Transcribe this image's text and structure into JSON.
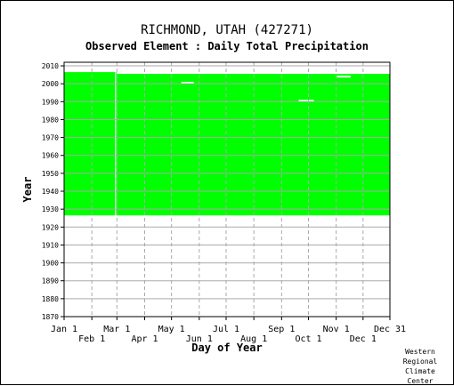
{
  "header": {
    "station": "RICHMOND, UTAH   (427271)",
    "element": "Observed Element : Daily Total Precipitation"
  },
  "credit": "Western\nRegional\nClimate\nCenter",
  "colors": {
    "data_fill": "#00ff00",
    "grid": "#aaaaaa",
    "axis": "#000000",
    "gap": "#ffffff"
  },
  "chart_data": {
    "type": "heatmap",
    "title": "Observed Element : Daily Total Precipitation",
    "xlabel": "Day of Year",
    "ylabel": "Year",
    "xlim": [
      1,
      365
    ],
    "ylim": [
      1870,
      2012
    ],
    "y_ticks": [
      1870,
      1880,
      1890,
      1900,
      1910,
      1920,
      1930,
      1940,
      1950,
      1960,
      1970,
      1980,
      1990,
      2000,
      2010
    ],
    "x_ticks_top_row": [
      {
        "label": "Jan 1",
        "day": 1
      },
      {
        "label": "Mar 1",
        "day": 60
      },
      {
        "label": "May 1",
        "day": 121
      },
      {
        "label": "Jul 1",
        "day": 182
      },
      {
        "label": "Sep 1",
        "day": 244
      },
      {
        "label": "Nov 1",
        "day": 305
      },
      {
        "label": "Dec 31",
        "day": 365
      }
    ],
    "x_ticks_bottom_row": [
      {
        "label": "Feb 1",
        "day": 32
      },
      {
        "label": "Apr 1",
        "day": 91
      },
      {
        "label": "Jun 1",
        "day": 152
      },
      {
        "label": "Aug 1",
        "day": 213
      },
      {
        "label": "Oct 1",
        "day": 274
      },
      {
        "label": "Dec 1",
        "day": 335
      }
    ],
    "grid_days": [
      32,
      60,
      91,
      121,
      152,
      182,
      213,
      244,
      274,
      305,
      335
    ],
    "coverage": [
      {
        "day_start": 1,
        "day_end": 59,
        "year_start": 1927,
        "year_end": 2006
      },
      {
        "day_start": 60,
        "day_end": 365,
        "year_start": 1927,
        "year_end": 2005
      }
    ],
    "gaps": [
      {
        "day_start": 132,
        "day_end": 146,
        "year": 2000.5
      },
      {
        "day_start": 263,
        "day_end": 280,
        "year": 1990.5
      },
      {
        "day_start": 306,
        "day_end": 321,
        "year": 2004
      },
      {
        "day_start": 58,
        "day_end": 59,
        "year_start": 1927,
        "year_end": 2006
      }
    ],
    "grid": true
  }
}
